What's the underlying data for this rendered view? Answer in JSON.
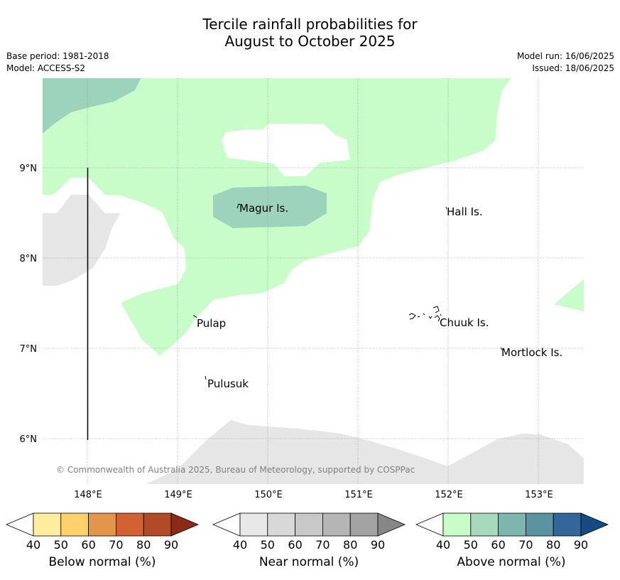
{
  "title_line1": "Tercile rainfall probabilities for",
  "title_line2": "August to October 2025",
  "base_period": "Base period: 1981-2018",
  "model": "Model: ACCESS-S2",
  "model_run": "Model run: 16/06/2025",
  "issued": "Issued: 18/06/2025",
  "copyright": "© Commonwealth of Australia 2025, Bureau of Meteorology, supported by COSPPac",
  "lat_labels": [
    "9°N",
    "8°N",
    "7°N",
    "6°N"
  ],
  "lon_labels": [
    "148°E",
    "149°E",
    "150°E",
    "151°E",
    "152°E",
    "153°E"
  ],
  "places": [
    "Magur Is.",
    "Hall Is.",
    "Pulap",
    "Chuuk Is.",
    "Mortlock Is.",
    "Pulusuk"
  ],
  "colorbars": [
    {
      "label": "Below normal (%)",
      "ticks": [
        "40",
        "50",
        "60",
        "70",
        "80",
        "90"
      ],
      "colors": [
        "#ffeda0",
        "#fed16c",
        "#e3964a",
        "#d06233",
        "#b24a28",
        "#8b2a18"
      ]
    },
    {
      "label": "Near normal (%)",
      "ticks": [
        "40",
        "50",
        "60",
        "70",
        "80",
        "90"
      ],
      "colors": [
        "#e8e8e8",
        "#d8d8d8",
        "#c8c8c8",
        "#b5b5b5",
        "#a3a3a3",
        "#878787"
      ]
    },
    {
      "label": "Above normal (%)",
      "ticks": [
        "40",
        "50",
        "60",
        "70",
        "80",
        "90"
      ],
      "colors": [
        "#c8fcc8",
        "#a7d9bd",
        "#7eb5af",
        "#5a94a0",
        "#336699",
        "#134c82"
      ]
    }
  ],
  "colors": {
    "above_40": "#c8fcc8",
    "above_50": "#9dd3bd",
    "near_40": "#e6e6e6"
  }
}
